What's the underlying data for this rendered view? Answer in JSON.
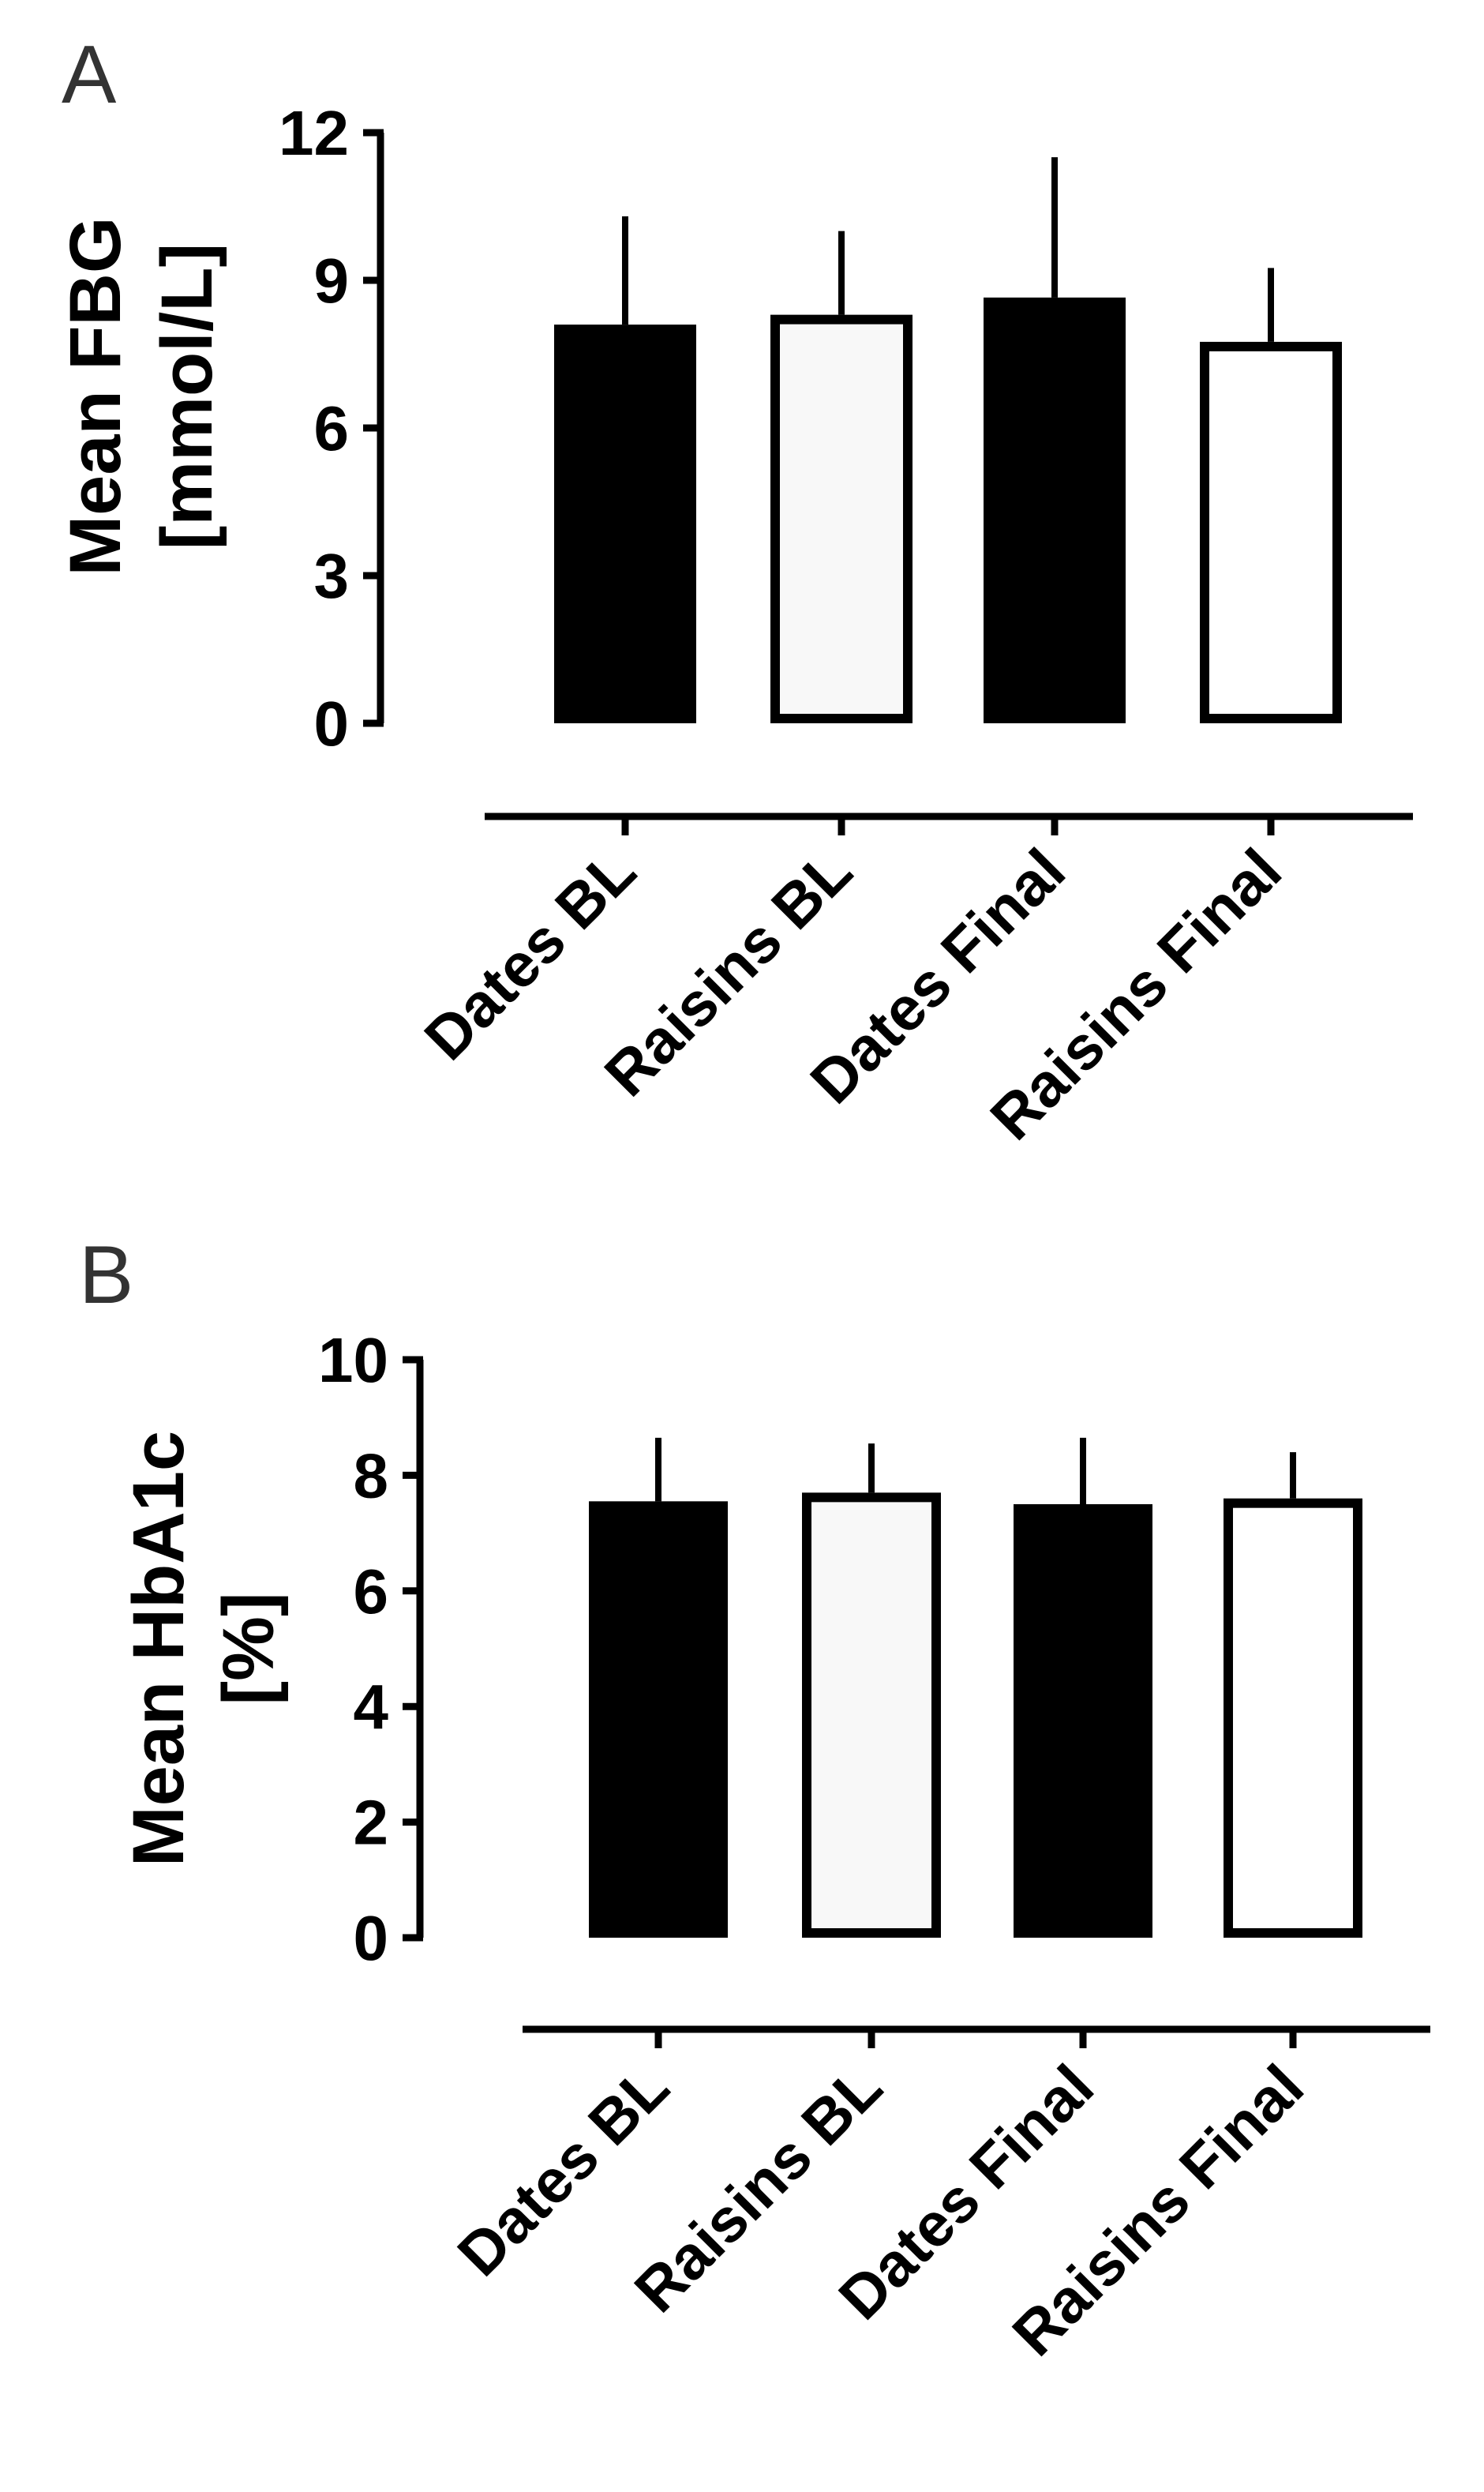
{
  "chart_data": [
    {
      "panel": "A",
      "type": "bar",
      "title": "",
      "xlabel": "",
      "ylabel_lines": [
        "Mean FBG",
        "[mmol/L]"
      ],
      "categories": [
        "Dates BL",
        "Raisins BL",
        "Dates Final",
        "Raisins Final"
      ],
      "values": [
        8.1,
        8.3,
        8.65,
        7.75
      ],
      "errors": [
        2.2,
        1.7,
        2.85,
        1.5
      ],
      "fills": [
        "#000000",
        "#f8f8f8",
        "#000000",
        "#ffffff"
      ],
      "ylim": [
        0,
        12
      ],
      "yticks": [
        "0",
        "3",
        "6",
        "9",
        "12"
      ],
      "grid": false,
      "legend": "none"
    },
    {
      "panel": "B",
      "type": "bar",
      "title": "",
      "xlabel": "",
      "ylabel_lines": [
        "Mean HbA1c",
        "[%]"
      ],
      "categories": [
        "Dates BL",
        "Raisins BL",
        "Dates Final",
        "Raisins Final"
      ],
      "values": [
        7.55,
        7.7,
        7.5,
        7.6
      ],
      "errors": [
        1.1,
        0.85,
        1.15,
        0.8
      ],
      "fills": [
        "#000000",
        "#f8f8f8",
        "#000000",
        "#ffffff"
      ],
      "ylim": [
        0,
        10
      ],
      "yticks": [
        "0",
        "2",
        "4",
        "6",
        "8",
        "10"
      ],
      "grid": false,
      "legend": "none"
    }
  ]
}
